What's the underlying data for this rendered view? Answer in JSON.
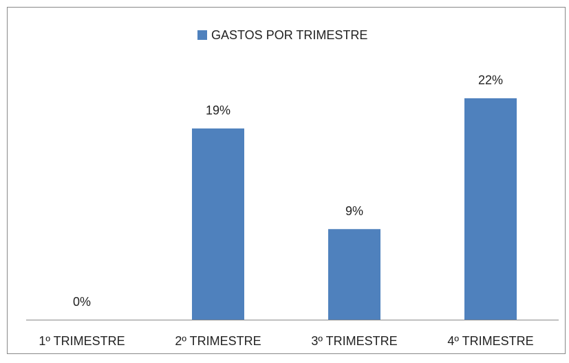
{
  "chart_data": {
    "type": "bar",
    "categories": [
      "1º TRIMESTRE",
      "2º TRIMESTRE",
      "3º TRIMESTRE",
      "4º TRIMESTRE"
    ],
    "series": [
      {
        "name": "GASTOS POR TRIMESTRE",
        "color": "#4f81bd",
        "values": [
          0,
          19,
          9,
          22
        ],
        "value_labels": [
          "0%",
          "19%",
          "9%",
          "22%"
        ]
      }
    ],
    "ylim": [
      0,
      25
    ],
    "legend": "top"
  }
}
